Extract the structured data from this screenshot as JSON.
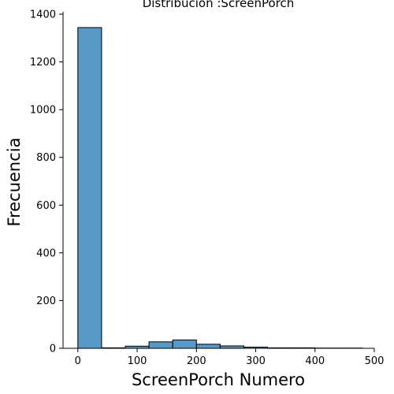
{
  "chart_data": {
    "type": "bar",
    "title": "Distribución :ScreenPorch",
    "xlabel": "ScreenPorch Numero",
    "ylabel": "Frecuencia",
    "xlim": [
      -25,
      500
    ],
    "ylim": [
      0,
      1410
    ],
    "bin_edges": [
      0,
      40,
      80,
      120,
      160,
      200,
      240,
      280,
      320,
      360,
      400,
      440,
      480
    ],
    "counts": [
      1344,
      2,
      9,
      27,
      35,
      17,
      10,
      5,
      2,
      2,
      1,
      1
    ],
    "xticks": [
      0,
      100,
      200,
      300,
      400,
      500
    ],
    "yticks": [
      0,
      200,
      400,
      600,
      800,
      1000,
      1200,
      1400
    ],
    "bar_color": "#5799c7",
    "edge_color": "#000000",
    "grid": false
  }
}
